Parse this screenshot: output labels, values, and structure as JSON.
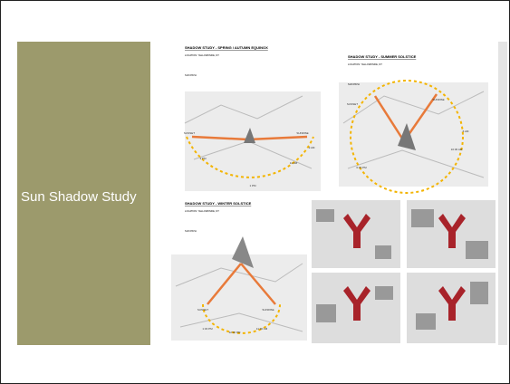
{
  "slide": {
    "title": "Sun Shadow Study"
  },
  "studies": [
    {
      "title": "SHADOW STUDY - SPRING / AUTUMN EQUINOX",
      "location": "LOCATION: YELLOWKNIFE, NT",
      "sun_path": "SUN PATH",
      "labels": [
        "SUNSET",
        "SUNRISE",
        "3 PM",
        "1 PM",
        "11 AM",
        "9 AM"
      ]
    },
    {
      "title": "SHADOW STUDY - SUMMER SOLSTICE",
      "location": "LOCATION: YELLOWKNIFE, NT",
      "sun_path": "SUN PATH",
      "labels": [
        "SUNSET",
        "SUNRISE",
        "6:30 PM",
        "10:30 AM",
        "6 AM"
      ]
    },
    {
      "title": "SHADOW STUDY - WINTER SOLSTICE",
      "location": "LOCATION: YELLOWKNIFE, NT",
      "sun_path": "SUN PATH",
      "labels": [
        "SUNSET",
        "SUNRISE",
        "1:30 PM",
        "12:30 PM",
        "11:30 AM"
      ]
    }
  ]
}
